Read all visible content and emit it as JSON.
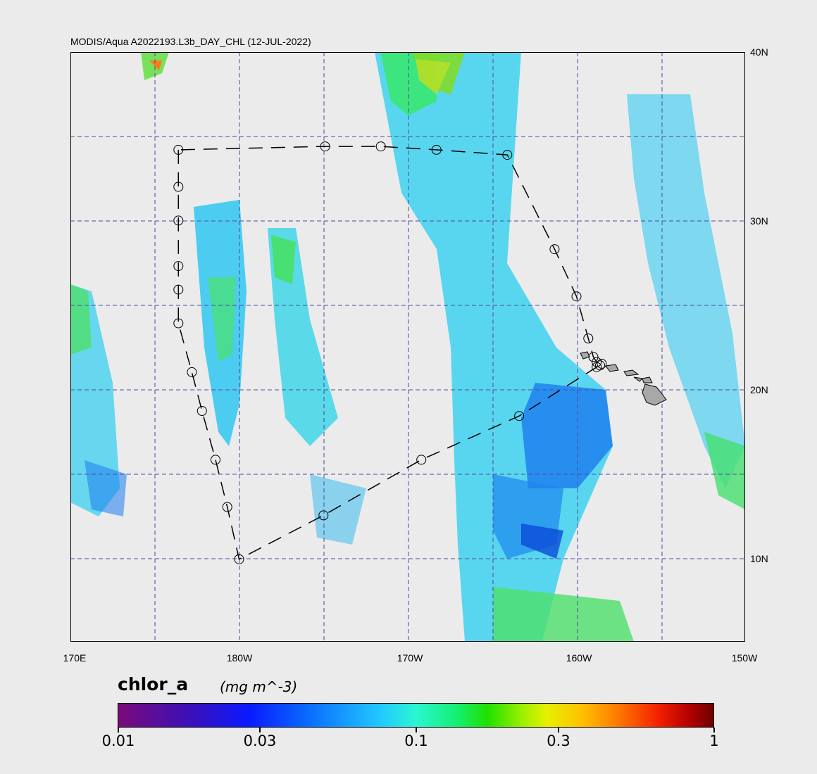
{
  "map": {
    "title": "MODIS/Aqua A2022193.L3b_DAY_CHL (12-JUL-2022)",
    "lat_labels": [
      "40N",
      "30N",
      "20N",
      "10N"
    ],
    "lon_labels": [
      "170E",
      "180W",
      "170W",
      "160W",
      "150W"
    ],
    "extent": {
      "lon_min": 170,
      "lon_max": 210,
      "lat_min": 5,
      "lat_max": 40
    },
    "grid": "dashed, every 5 degrees",
    "cruise_track": [
      [
        176.4,
        34.2
      ],
      [
        176.4,
        32.0
      ],
      [
        176.4,
        30.0
      ],
      [
        176.4,
        27.3
      ],
      [
        176.4,
        25.9
      ],
      [
        176.4,
        23.9
      ],
      [
        177.2,
        21.0
      ],
      [
        177.8,
        18.7
      ],
      [
        178.6,
        15.8
      ],
      [
        179.3,
        13.0
      ],
      [
        180.0,
        9.9
      ],
      [
        185.0,
        12.5
      ],
      [
        190.8,
        15.8
      ],
      [
        196.6,
        18.4
      ],
      [
        201.2,
        21.3
      ],
      [
        201.4,
        21.4
      ],
      [
        201.5,
        21.5
      ],
      [
        201.2,
        21.6
      ],
      [
        201.0,
        21.9
      ],
      [
        200.7,
        23.0
      ],
      [
        200.0,
        25.5
      ],
      [
        198.7,
        28.3
      ],
      [
        195.9,
        33.9
      ],
      [
        191.7,
        34.2
      ],
      [
        188.4,
        34.4
      ],
      [
        185.1,
        34.4
      ]
    ]
  },
  "colorbar": {
    "variable": "chlor_a",
    "units": "(mg m^-3)",
    "scale": "log",
    "range": [
      0.01,
      1
    ],
    "tick_labels": [
      "0.01",
      "0.03",
      "0.1",
      "0.3",
      "1"
    ],
    "tick_values": [
      0.01,
      0.03,
      0.1,
      0.3,
      1
    ]
  }
}
